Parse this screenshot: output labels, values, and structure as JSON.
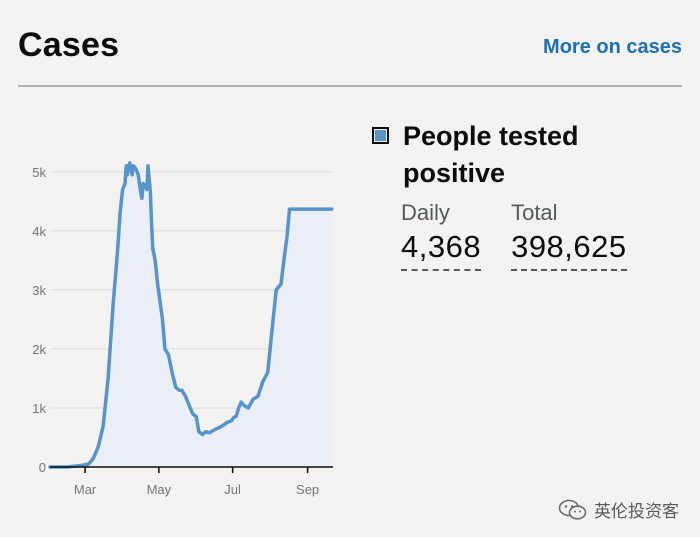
{
  "header": {
    "title": "Cases",
    "more_link": "More on cases"
  },
  "colors": {
    "line": "#5694ca",
    "area": "#e9eef7",
    "link": "#1d70b8",
    "background": "#f3f2f1",
    "rule": "#b1b4b6"
  },
  "panel": {
    "series_name": "People tested positive",
    "daily_label": "Daily",
    "daily_value": "4,368",
    "total_label": "Total",
    "total_value": "398,625"
  },
  "watermark": {
    "text": "英伦投资客"
  },
  "chart_data": {
    "type": "area",
    "title": "",
    "xlabel": "",
    "ylabel": "",
    "xlim": [
      "2020-02-01",
      "2020-09-22"
    ],
    "ylim": [
      0,
      5200
    ],
    "grid": true,
    "xticks": [
      {
        "date": "2020-03-01",
        "label": "Mar"
      },
      {
        "date": "2020-05-01",
        "label": "May"
      },
      {
        "date": "2020-07-01",
        "label": "Jul"
      },
      {
        "date": "2020-09-01",
        "label": "Sep"
      }
    ],
    "yticks": [
      {
        "value": 0,
        "label": "0"
      },
      {
        "value": 1000,
        "label": "1k"
      },
      {
        "value": 2000,
        "label": "2k"
      },
      {
        "value": 3000,
        "label": "3k"
      },
      {
        "value": 4000,
        "label": "4k"
      },
      {
        "value": 5000,
        "label": "5k"
      }
    ],
    "series": [
      {
        "x": [
          "2020-02-01",
          "2020-02-15",
          "2020-02-28",
          "2020-03-04",
          "2020-03-08",
          "2020-03-12",
          "2020-03-16",
          "2020-03-20",
          "2020-03-24",
          "2020-03-28",
          "2020-03-30",
          "2020-04-01",
          "2020-04-03",
          "2020-04-04",
          "2020-04-05",
          "2020-04-06",
          "2020-04-07",
          "2020-04-09",
          "2020-04-10",
          "2020-04-12",
          "2020-04-14",
          "2020-04-16",
          "2020-04-17",
          "2020-04-18",
          "2020-04-20",
          "2020-04-21",
          "2020-04-22",
          "2020-04-24",
          "2020-04-25",
          "2020-04-26",
          "2020-04-28",
          "2020-04-30",
          "2020-05-02",
          "2020-05-04",
          "2020-05-06",
          "2020-05-09",
          "2020-05-12",
          "2020-05-15",
          "2020-05-18",
          "2020-05-20",
          "2020-05-23",
          "2020-05-25",
          "2020-05-27",
          "2020-05-29",
          "2020-06-01",
          "2020-06-03",
          "2020-06-06",
          "2020-06-09",
          "2020-06-12",
          "2020-06-15",
          "2020-06-18",
          "2020-06-21",
          "2020-06-24",
          "2020-06-27",
          "2020-06-30",
          "2020-07-02",
          "2020-07-04",
          "2020-07-06",
          "2020-07-08",
          "2020-07-10",
          "2020-07-14",
          "2020-07-18",
          "2020-07-22",
          "2020-07-26",
          "2020-07-30",
          "2020-08-02",
          "2020-08-06",
          "2020-08-10",
          "2020-08-13",
          "2020-08-15",
          "2020-08-17",
          "2020-08-19",
          "2020-08-21",
          "2020-08-23",
          "2020-08-26",
          "2020-08-29",
          "2020-09-01",
          "2020-09-03",
          "2020-09-05",
          "2020-09-07",
          "2020-09-09",
          "2020-09-11",
          "2020-09-13",
          "2020-09-15",
          "2020-09-17",
          "2020-09-19",
          "2020-09-21"
        ],
        "values": [
          0,
          0,
          30,
          50,
          150,
          350,
          700,
          1500,
          2700,
          3700,
          4300,
          4700,
          4800,
          5100,
          4950,
          5100,
          5150,
          4950,
          5100,
          5050,
          4950,
          4650,
          4550,
          4800,
          4750,
          4700,
          5100,
          4650,
          4100,
          3700,
          3500,
          3100,
          2800,
          2500,
          2000,
          1900,
          1600,
          1350,
          1300,
          1300,
          1200,
          1100,
          1000,
          900,
          850,
          600,
          550,
          600,
          580,
          620,
          650,
          680,
          720,
          760,
          780,
          840,
          860,
          1000,
          1100,
          1050,
          1000,
          1150,
          1200,
          1450,
          1600,
          2200,
          3000,
          3100,
          3600,
          3900,
          4368,
          4368,
          4368,
          4368,
          4368,
          4368,
          4368,
          4368,
          4368,
          4368,
          4368,
          4368,
          4368,
          4368,
          4368,
          4368,
          4368
        ]
      }
    ]
  }
}
